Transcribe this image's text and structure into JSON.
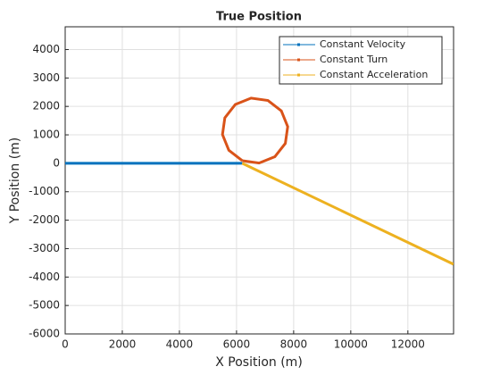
{
  "chart_data": {
    "type": "line",
    "title": "True Position",
    "x_label": "X Position (m)",
    "y_label": "Y Position (m)",
    "xlim": [
      0,
      13600
    ],
    "ylim": [
      -6000,
      4800
    ],
    "xticks": [
      0,
      2000,
      4000,
      6000,
      8000,
      10000,
      12000
    ],
    "yticks": [
      -6000,
      -5000,
      -4000,
      -3000,
      -2000,
      -1000,
      0,
      1000,
      2000,
      3000,
      4000
    ],
    "grid": true,
    "legend": "top-right",
    "series": [
      {
        "name": "Constant Velocity",
        "color": "#0072BD",
        "x": [
          0,
          6200
        ],
        "y": [
          0,
          0
        ]
      },
      {
        "name": "Constant Turn",
        "color": "#D95319",
        "x": [
          6201,
          6790,
          7342,
          7709,
          7792,
          7569,
          7100,
          6510,
          5958,
          5591,
          5508,
          5731,
          6201
        ],
        "y": [
          91,
          8,
          231,
          700,
          1290,
          1842,
          2209,
          2292,
          2069,
          1600,
          1010,
          458,
          91
        ]
      },
      {
        "name": "Constant Acceleration",
        "color": "#EDB120",
        "x": [
          6200,
          13600
        ],
        "y": [
          0,
          -3550
        ]
      }
    ]
  }
}
